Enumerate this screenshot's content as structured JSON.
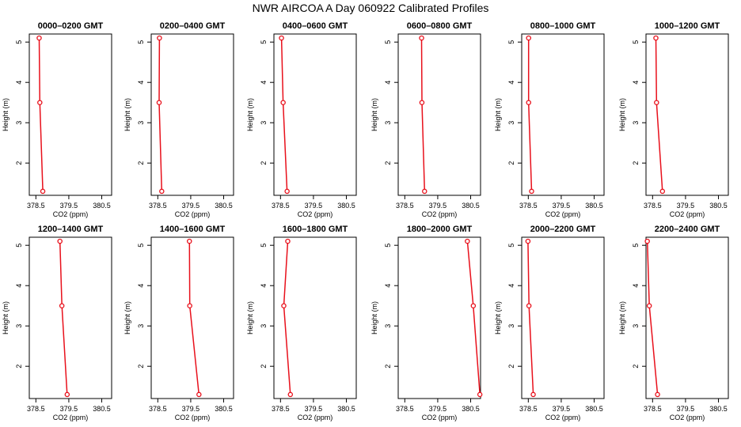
{
  "figure": {
    "title": "NWR AIRCOA A  Day 060922  Calibrated Profiles"
  },
  "chart_data": [
    {
      "type": "line",
      "title": "0000–0200 GMT",
      "xlabel": "CO2 (ppm)",
      "ylabel": "Height (m)",
      "xlim": [
        378.3,
        380.8
      ],
      "ylim": [
        1.2,
        5.2
      ],
      "x_ticks": [
        378.5,
        379.5,
        380.5
      ],
      "x_tick_labels": [
        "378.5",
        "379.5",
        "380.5"
      ],
      "y_ticks": [
        2,
        3,
        4,
        5
      ],
      "color": "#e8101b",
      "series": [
        {
          "x": [
            378.71,
            378.62,
            378.6
          ],
          "y": [
            1.3,
            3.5,
            5.1
          ]
        }
      ]
    },
    {
      "type": "line",
      "title": "0200–0400 GMT",
      "xlabel": "CO2 (ppm)",
      "ylabel": "Height (m)",
      "xlim": [
        378.3,
        380.8
      ],
      "ylim": [
        1.2,
        5.2
      ],
      "x_ticks": [
        378.5,
        379.5,
        380.5
      ],
      "x_tick_labels": [
        "378.5",
        "379.5",
        "380.5"
      ],
      "y_ticks": [
        2,
        3,
        4,
        5
      ],
      "color": "#e8101b",
      "series": [
        {
          "x": [
            378.62,
            378.54,
            378.55
          ],
          "y": [
            1.3,
            3.5,
            5.1
          ]
        }
      ]
    },
    {
      "type": "line",
      "title": "0400–0600 GMT",
      "xlabel": "CO2 (ppm)",
      "ylabel": "Height (m)",
      "xlim": [
        378.3,
        380.8
      ],
      "ylim": [
        1.2,
        5.2
      ],
      "x_ticks": [
        378.5,
        379.5,
        380.5
      ],
      "x_tick_labels": [
        "378.5",
        "379.5",
        "380.5"
      ],
      "y_ticks": [
        2,
        3,
        4,
        5
      ],
      "color": "#e8101b",
      "series": [
        {
          "x": [
            378.7,
            378.58,
            378.53
          ],
          "y": [
            1.3,
            3.5,
            5.1
          ]
        }
      ]
    },
    {
      "type": "line",
      "title": "0600–0800 GMT",
      "xlabel": "CO2 (ppm)",
      "ylabel": "Height (m)",
      "xlim": [
        378.3,
        380.8
      ],
      "ylim": [
        1.2,
        5.2
      ],
      "x_ticks": [
        378.5,
        379.5,
        380.5
      ],
      "x_tick_labels": [
        "378.5",
        "379.5",
        "380.5"
      ],
      "y_ticks": [
        2,
        3,
        4,
        5
      ],
      "color": "#e8101b",
      "series": [
        {
          "x": [
            379.1,
            379.02,
            379.01
          ],
          "y": [
            1.3,
            3.5,
            5.1
          ]
        }
      ]
    },
    {
      "type": "line",
      "title": "0800–1000 GMT",
      "xlabel": "CO2 (ppm)",
      "ylabel": "Height (m)",
      "xlim": [
        378.3,
        380.8
      ],
      "ylim": [
        1.2,
        5.2
      ],
      "x_ticks": [
        378.5,
        379.5,
        380.5
      ],
      "x_tick_labels": [
        "378.5",
        "379.5",
        "380.5"
      ],
      "y_ticks": [
        2,
        3,
        4,
        5
      ],
      "color": "#e8101b",
      "series": [
        {
          "x": [
            378.6,
            378.51,
            378.51
          ],
          "y": [
            1.3,
            3.5,
            5.1
          ]
        }
      ]
    },
    {
      "type": "line",
      "title": "1000–1200 GMT",
      "xlabel": "CO2 (ppm)",
      "ylabel": "Height (m)",
      "xlim": [
        378.3,
        380.8
      ],
      "ylim": [
        1.2,
        5.2
      ],
      "x_ticks": [
        378.5,
        379.5,
        380.5
      ],
      "x_tick_labels": [
        "378.5",
        "379.5",
        "380.5"
      ],
      "y_ticks": [
        2,
        3,
        4,
        5
      ],
      "color": "#e8101b",
      "series": [
        {
          "x": [
            378.8,
            378.62,
            378.6
          ],
          "y": [
            1.3,
            3.5,
            5.1
          ]
        }
      ]
    },
    {
      "type": "line",
      "title": "1200–1400 GMT",
      "xlabel": "CO2 (ppm)",
      "ylabel": "Height (m)",
      "xlim": [
        378.3,
        380.8
      ],
      "ylim": [
        1.2,
        5.2
      ],
      "x_ticks": [
        378.5,
        379.5,
        380.5
      ],
      "x_tick_labels": [
        "378.5",
        "379.5",
        "380.5"
      ],
      "y_ticks": [
        2,
        3,
        4,
        5
      ],
      "color": "#e8101b",
      "series": [
        {
          "x": [
            379.45,
            379.29,
            379.23
          ],
          "y": [
            1.3,
            3.5,
            5.1
          ]
        }
      ]
    },
    {
      "type": "line",
      "title": "1400–1600 GMT",
      "xlabel": "CO2 (ppm)",
      "ylabel": "Height (m)",
      "xlim": [
        378.3,
        380.8
      ],
      "ylim": [
        1.2,
        5.2
      ],
      "x_ticks": [
        378.5,
        379.5,
        380.5
      ],
      "x_tick_labels": [
        "378.5",
        "379.5",
        "380.5"
      ],
      "y_ticks": [
        2,
        3,
        4,
        5
      ],
      "color": "#e8101b",
      "series": [
        {
          "x": [
            379.75,
            379.47,
            379.46
          ],
          "y": [
            1.3,
            3.5,
            5.1
          ]
        }
      ]
    },
    {
      "type": "line",
      "title": "1600–1800 GMT",
      "xlabel": "CO2 (ppm)",
      "ylabel": "Height (m)",
      "xlim": [
        378.3,
        380.8
      ],
      "ylim": [
        1.2,
        5.2
      ],
      "x_ticks": [
        378.5,
        379.5,
        380.5
      ],
      "x_tick_labels": [
        "378.5",
        "379.5",
        "380.5"
      ],
      "y_ticks": [
        2,
        3,
        4,
        5
      ],
      "color": "#e8101b",
      "series": [
        {
          "x": [
            378.8,
            378.6,
            378.72
          ],
          "y": [
            1.3,
            3.5,
            5.1
          ]
        }
      ]
    },
    {
      "type": "line",
      "title": "1800–2000 GMT",
      "xlabel": "CO2 (ppm)",
      "ylabel": "Height (m)",
      "xlim": [
        378.3,
        380.8
      ],
      "ylim": [
        1.2,
        5.2
      ],
      "x_ticks": [
        378.5,
        379.5,
        380.5
      ],
      "x_tick_labels": [
        "378.5",
        "379.5",
        "380.5"
      ],
      "y_ticks": [
        2,
        3,
        4,
        5
      ],
      "color": "#e8101b",
      "series": [
        {
          "x": [
            380.78,
            380.58,
            380.4
          ],
          "y": [
            1.3,
            3.5,
            5.1
          ]
        }
      ]
    },
    {
      "type": "line",
      "title": "2000–2200 GMT",
      "xlabel": "CO2 (ppm)",
      "ylabel": "Height (m)",
      "xlim": [
        378.3,
        380.8
      ],
      "ylim": [
        1.2,
        5.2
      ],
      "x_ticks": [
        378.5,
        379.5,
        380.5
      ],
      "x_tick_labels": [
        "378.5",
        "379.5",
        "380.5"
      ],
      "y_ticks": [
        2,
        3,
        4,
        5
      ],
      "color": "#e8101b",
      "series": [
        {
          "x": [
            378.65,
            378.52,
            378.49
          ],
          "y": [
            1.3,
            3.5,
            5.1
          ]
        }
      ]
    },
    {
      "type": "line",
      "title": "2200–2400 GMT",
      "xlabel": "CO2 (ppm)",
      "ylabel": "Height (m)",
      "xlim": [
        378.3,
        380.8
      ],
      "ylim": [
        1.2,
        5.2
      ],
      "x_ticks": [
        378.5,
        379.5,
        380.5
      ],
      "x_tick_labels": [
        "378.5",
        "379.5",
        "380.5"
      ],
      "y_ticks": [
        2,
        3,
        4,
        5
      ],
      "color": "#e8101b",
      "series": [
        {
          "x": [
            378.65,
            378.4,
            378.34
          ],
          "y": [
            1.3,
            3.5,
            5.1
          ]
        }
      ]
    }
  ]
}
